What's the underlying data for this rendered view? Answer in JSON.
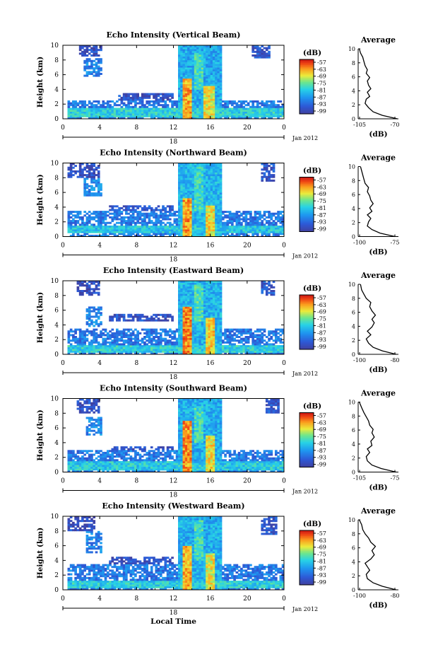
{
  "chart_data": [
    {
      "type": "heatmap",
      "title": "Echo Intensity (Vertical Beam)",
      "ylabel": "Height (km)",
      "x_ticks": [
        "0",
        "4",
        "8",
        "12",
        "16",
        "20",
        "0"
      ],
      "date_label": "18",
      "month_label": "Jan 2012",
      "y_ticks": [
        "0",
        "2",
        "4",
        "6",
        "8",
        "10"
      ],
      "xlim": [
        0,
        24
      ],
      "ylim": [
        0,
        10
      ],
      "colorbar": {
        "unit": "(dB)",
        "ticks": [
          "-57",
          "-63",
          "-69",
          "-75",
          "-81",
          "-87",
          "-93",
          "-99"
        ]
      },
      "profile": {
        "title": "Average",
        "xlabel": "(dB)",
        "x_ticks": [
          "-105",
          "-70"
        ],
        "xlim": [
          -105,
          -70
        ],
        "y_ticks": [
          "0",
          "2",
          "4",
          "6",
          "8",
          "10"
        ],
        "points": [
          [
            -71,
            0
          ],
          [
            -84,
            0.5
          ],
          [
            -92,
            1.0
          ],
          [
            -96,
            1.6
          ],
          [
            -99,
            2.2
          ],
          [
            -98,
            2.8
          ],
          [
            -95,
            3.2
          ],
          [
            -97,
            3.8
          ],
          [
            -94,
            4.3
          ],
          [
            -96,
            4.8
          ],
          [
            -97,
            5.4
          ],
          [
            -95,
            5.9
          ],
          [
            -98,
            6.5
          ],
          [
            -97,
            7.0
          ],
          [
            -99,
            7.6
          ],
          [
            -100,
            8.2
          ],
          [
            -101,
            8.8
          ],
          [
            -103,
            9.4
          ],
          [
            -104,
            10
          ]
        ]
      },
      "echo_regions": [
        {
          "x0": 0.5,
          "x1": 24,
          "y0": 0,
          "y1": 2.4,
          "level": 0.22
        },
        {
          "x0": 0.5,
          "x1": 24,
          "y0": 0.3,
          "y1": 1.5,
          "level": 0.45
        },
        {
          "x0": 2.3,
          "x1": 4.2,
          "y0": 5.8,
          "y1": 8.2,
          "level": 0.25
        },
        {
          "x0": 1.8,
          "x1": 4.2,
          "y0": 8.5,
          "y1": 10,
          "level": 0.08
        },
        {
          "x0": 12.4,
          "x1": 17.3,
          "y0": 0,
          "y1": 10,
          "level": 0.35
        },
        {
          "x0": 13.0,
          "x1": 14.0,
          "y0": 0,
          "y1": 5.5,
          "level": 0.8
        },
        {
          "x0": 15.3,
          "x1": 16.6,
          "y0": 0,
          "y1": 4.5,
          "level": 0.7
        },
        {
          "x0": 14.3,
          "x1": 15.2,
          "y0": 4,
          "y1": 9,
          "level": 0.5
        },
        {
          "x0": 20.5,
          "x1": 22.5,
          "y0": 8.3,
          "y1": 10,
          "level": 0.12
        },
        {
          "x0": 6.0,
          "x1": 12.0,
          "y0": 2.5,
          "y1": 3.5,
          "level": 0.1
        }
      ]
    },
    {
      "type": "heatmap",
      "title": "Echo Intensity (Northward Beam)",
      "ylabel": "Height (km)",
      "x_ticks": [
        "0",
        "4",
        "8",
        "12",
        "16",
        "20",
        "0"
      ],
      "date_label": "18",
      "month_label": "Jan 2012",
      "y_ticks": [
        "0",
        "2",
        "4",
        "6",
        "8",
        "10"
      ],
      "xlim": [
        0,
        24
      ],
      "ylim": [
        0,
        10
      ],
      "colorbar": {
        "unit": "(dB)",
        "ticks": [
          "-57",
          "-63",
          "-69",
          "-75",
          "-81",
          "-87",
          "-93",
          "-99"
        ]
      },
      "profile": {
        "title": "Average",
        "xlabel": "(dB)",
        "x_ticks": [
          "-100",
          "-75"
        ],
        "xlim": [
          -105,
          -70
        ],
        "y_ticks": [
          "0",
          "2",
          "4",
          "6",
          "8",
          "10"
        ],
        "points": [
          [
            -73,
            0
          ],
          [
            -86,
            0.5
          ],
          [
            -93,
            1.0
          ],
          [
            -97,
            1.5
          ],
          [
            -96,
            2.1
          ],
          [
            -94,
            2.6
          ],
          [
            -97,
            3.1
          ],
          [
            -93,
            3.6
          ],
          [
            -95,
            4.1
          ],
          [
            -92,
            4.7
          ],
          [
            -94,
            5.2
          ],
          [
            -95,
            5.8
          ],
          [
            -97,
            6.4
          ],
          [
            -96,
            7.0
          ],
          [
            -99,
            7.6
          ],
          [
            -100,
            8.2
          ],
          [
            -101,
            8.8
          ],
          [
            -102,
            9.4
          ],
          [
            -103,
            10
          ]
        ]
      },
      "echo_regions": [
        {
          "x0": 0.5,
          "x1": 24,
          "y0": 0,
          "y1": 3.6,
          "level": 0.22
        },
        {
          "x0": 0.5,
          "x1": 24,
          "y0": 0.5,
          "y1": 1.6,
          "level": 0.42
        },
        {
          "x0": 2.3,
          "x1": 4.2,
          "y0": 5.5,
          "y1": 8.0,
          "level": 0.27
        },
        {
          "x0": 0.5,
          "x1": 4.0,
          "y0": 8.0,
          "y1": 10,
          "level": 0.08
        },
        {
          "x0": 12.4,
          "x1": 17.3,
          "y0": 0,
          "y1": 10,
          "level": 0.38
        },
        {
          "x0": 12.9,
          "x1": 14.0,
          "y0": 0,
          "y1": 5.2,
          "level": 0.82
        },
        {
          "x0": 15.4,
          "x1": 16.5,
          "y0": 0,
          "y1": 4.2,
          "level": 0.72
        },
        {
          "x0": 14.2,
          "x1": 15.2,
          "y0": 3.5,
          "y1": 9.5,
          "level": 0.5
        },
        {
          "x0": 21.5,
          "x1": 23.0,
          "y0": 7.5,
          "y1": 10,
          "level": 0.12
        },
        {
          "x0": 5.0,
          "x1": 12.0,
          "y0": 3.2,
          "y1": 4.2,
          "level": 0.12
        }
      ]
    },
    {
      "type": "heatmap",
      "title": "Echo Intensity (Eastward Beam)",
      "ylabel": "Height (km)",
      "x_ticks": [
        "0",
        "4",
        "8",
        "12",
        "16",
        "20",
        "0"
      ],
      "date_label": "18",
      "month_label": "Jan 2012",
      "y_ticks": [
        "0",
        "2",
        "4",
        "6",
        "8",
        "10"
      ],
      "xlim": [
        0,
        24
      ],
      "ylim": [
        0,
        10
      ],
      "colorbar": {
        "unit": "(dB)",
        "ticks": [
          "-57",
          "-63",
          "-69",
          "-75",
          "-81",
          "-87",
          "-93",
          "-99"
        ]
      },
      "profile": {
        "title": "Average",
        "xlabel": "(dB)",
        "x_ticks": [
          "-100",
          "-80"
        ],
        "xlim": [
          -105,
          -70
        ],
        "y_ticks": [
          "0",
          "2",
          "4",
          "6",
          "8",
          "10"
        ],
        "points": [
          [
            -72,
            0
          ],
          [
            -84,
            0.5
          ],
          [
            -92,
            1.0
          ],
          [
            -96,
            1.6
          ],
          [
            -98,
            2.2
          ],
          [
            -94,
            2.8
          ],
          [
            -97,
            3.3
          ],
          [
            -93,
            3.9
          ],
          [
            -91,
            4.5
          ],
          [
            -93,
            5.0
          ],
          [
            -90,
            5.6
          ],
          [
            -93,
            6.2
          ],
          [
            -95,
            6.8
          ],
          [
            -94,
            7.4
          ],
          [
            -98,
            8.0
          ],
          [
            -100,
            8.6
          ],
          [
            -102,
            9.2
          ],
          [
            -103,
            10
          ]
        ]
      },
      "echo_regions": [
        {
          "x0": 0.5,
          "x1": 24,
          "y0": 0,
          "y1": 3.4,
          "level": 0.22
        },
        {
          "x0": 0.5,
          "x1": 24,
          "y0": 0.3,
          "y1": 1.2,
          "level": 0.45
        },
        {
          "x0": 2.5,
          "x1": 4.2,
          "y0": 3.8,
          "y1": 6.5,
          "level": 0.26
        },
        {
          "x0": 1.5,
          "x1": 4.0,
          "y0": 8.0,
          "y1": 10,
          "level": 0.08
        },
        {
          "x0": 12.4,
          "x1": 17.3,
          "y0": 0,
          "y1": 10,
          "level": 0.37
        },
        {
          "x0": 12.9,
          "x1": 14.0,
          "y0": 0,
          "y1": 6.5,
          "level": 0.84
        },
        {
          "x0": 15.4,
          "x1": 16.5,
          "y0": 0,
          "y1": 5.0,
          "level": 0.74
        },
        {
          "x0": 14.2,
          "x1": 15.2,
          "y0": 4.5,
          "y1": 9.5,
          "level": 0.52
        },
        {
          "x0": 21.5,
          "x1": 23.0,
          "y0": 8.0,
          "y1": 10,
          "level": 0.12
        },
        {
          "x0": 5.0,
          "x1": 12.0,
          "y0": 4.5,
          "y1": 5.5,
          "level": 0.1
        }
      ]
    },
    {
      "type": "heatmap",
      "title": "Echo Intensity (Southward Beam)",
      "ylabel": "Height (km)",
      "x_ticks": [
        "0",
        "4",
        "8",
        "12",
        "16",
        "20",
        "0"
      ],
      "date_label": "18",
      "month_label": "Jan 2012",
      "y_ticks": [
        "0",
        "2",
        "4",
        "6",
        "8",
        "10"
      ],
      "xlim": [
        0,
        24
      ],
      "ylim": [
        0,
        10
      ],
      "colorbar": {
        "unit": "(dB)",
        "ticks": [
          "-57",
          "-63",
          "-69",
          "-75",
          "-81",
          "-87",
          "-93",
          "-99"
        ]
      },
      "profile": {
        "title": "Average",
        "xlabel": "(dB)",
        "x_ticks": [
          "-105",
          "-75"
        ],
        "xlim": [
          -105,
          -70
        ],
        "y_ticks": [
          "0",
          "2",
          "4",
          "6",
          "8",
          "10"
        ],
        "points": [
          [
            -72,
            0
          ],
          [
            -85,
            0.5
          ],
          [
            -93,
            1.0
          ],
          [
            -97,
            1.6
          ],
          [
            -98,
            2.2
          ],
          [
            -95,
            2.8
          ],
          [
            -97,
            3.3
          ],
          [
            -93,
            3.8
          ],
          [
            -94,
            4.4
          ],
          [
            -91,
            5.0
          ],
          [
            -93,
            5.6
          ],
          [
            -92,
            6.1
          ],
          [
            -95,
            6.7
          ],
          [
            -96,
            7.3
          ],
          [
            -98,
            7.9
          ],
          [
            -100,
            8.5
          ],
          [
            -102,
            9.2
          ],
          [
            -104,
            10
          ]
        ]
      },
      "echo_regions": [
        {
          "x0": 0.5,
          "x1": 24,
          "y0": 0,
          "y1": 3.0,
          "level": 0.22
        },
        {
          "x0": 0.5,
          "x1": 24,
          "y0": 0.3,
          "y1": 1.4,
          "level": 0.43
        },
        {
          "x0": 2.5,
          "x1": 4.2,
          "y0": 5.0,
          "y1": 7.5,
          "level": 0.26
        },
        {
          "x0": 1.5,
          "x1": 4.0,
          "y0": 8.0,
          "y1": 10,
          "level": 0.08
        },
        {
          "x0": 12.4,
          "x1": 17.3,
          "y0": 0,
          "y1": 10,
          "level": 0.36
        },
        {
          "x0": 12.9,
          "x1": 14.0,
          "y0": 0,
          "y1": 7.0,
          "level": 0.82
        },
        {
          "x0": 15.4,
          "x1": 16.5,
          "y0": 0,
          "y1": 5.0,
          "level": 0.72
        },
        {
          "x0": 14.2,
          "x1": 15.2,
          "y0": 4.0,
          "y1": 9.0,
          "level": 0.5
        },
        {
          "x0": 22.0,
          "x1": 23.5,
          "y0": 8.0,
          "y1": 10,
          "level": 0.12
        },
        {
          "x0": 5.0,
          "x1": 12.0,
          "y0": 2.5,
          "y1": 3.5,
          "level": 0.1
        }
      ]
    },
    {
      "type": "heatmap",
      "title": "Echo Intensity (Westward Beam)",
      "ylabel": "Height (km)",
      "x_ticks": [
        "0",
        "4",
        "8",
        "12",
        "16",
        "20",
        "0"
      ],
      "date_label": "18",
      "month_label": "Jan 2012",
      "y_ticks": [
        "0",
        "2",
        "4",
        "6",
        "8",
        "10"
      ],
      "xlim": [
        0,
        24
      ],
      "ylim": [
        0,
        10
      ],
      "xlabel": "Local Time",
      "colorbar": {
        "unit": "(dB)",
        "ticks": [
          "-57",
          "-63",
          "-69",
          "-75",
          "-81",
          "-87",
          "-93",
          "-99"
        ]
      },
      "profile": {
        "title": "Average",
        "xlabel": "(dB)",
        "x_ticks": [
          "-100",
          "-80"
        ],
        "xlim": [
          -105,
          -70
        ],
        "y_ticks": [
          "0",
          "2",
          "4",
          "6",
          "8",
          "10"
        ],
        "points": [
          [
            -72,
            0
          ],
          [
            -84,
            0.5
          ],
          [
            -92,
            1.0
          ],
          [
            -97,
            1.6
          ],
          [
            -98,
            2.2
          ],
          [
            -95,
            2.8
          ],
          [
            -97,
            3.3
          ],
          [
            -99,
            3.8
          ],
          [
            -94,
            4.4
          ],
          [
            -91,
            5.0
          ],
          [
            -93,
            5.6
          ],
          [
            -90,
            6.2
          ],
          [
            -94,
            6.8
          ],
          [
            -96,
            7.4
          ],
          [
            -99,
            8.0
          ],
          [
            -101,
            8.6
          ],
          [
            -102,
            9.3
          ],
          [
            -104,
            10
          ]
        ]
      },
      "echo_regions": [
        {
          "x0": 0.5,
          "x1": 24,
          "y0": 0,
          "y1": 3.4,
          "level": 0.22
        },
        {
          "x0": 0.5,
          "x1": 24,
          "y0": 0.3,
          "y1": 1.3,
          "level": 0.44
        },
        {
          "x0": 2.5,
          "x1": 4.2,
          "y0": 5.0,
          "y1": 8.0,
          "level": 0.25
        },
        {
          "x0": 0.5,
          "x1": 3.5,
          "y0": 8.0,
          "y1": 10,
          "level": 0.08
        },
        {
          "x0": 12.4,
          "x1": 17.3,
          "y0": 0,
          "y1": 10,
          "level": 0.36
        },
        {
          "x0": 12.9,
          "x1": 14.0,
          "y0": 0,
          "y1": 6.0,
          "level": 0.78
        },
        {
          "x0": 15.4,
          "x1": 16.5,
          "y0": 0,
          "y1": 5.0,
          "level": 0.7
        },
        {
          "x0": 14.2,
          "x1": 15.2,
          "y0": 4.0,
          "y1": 9.5,
          "level": 0.5
        },
        {
          "x0": 21.5,
          "x1": 23.2,
          "y0": 7.5,
          "y1": 10,
          "level": 0.12
        },
        {
          "x0": 5.0,
          "x1": 12.0,
          "y0": 3.5,
          "y1": 4.5,
          "level": 0.1
        }
      ]
    }
  ]
}
